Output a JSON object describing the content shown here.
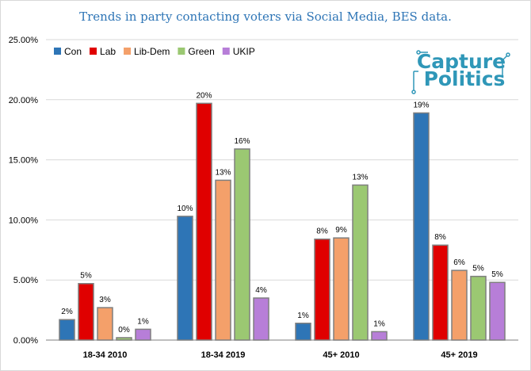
{
  "chart_data": {
    "type": "bar",
    "title": "Trends in party contacting voters via Social Media, BES data.",
    "categories": [
      "18-34 2010",
      "18-34 2019",
      "45+ 2010",
      "45+ 2019"
    ],
    "series": [
      {
        "name": "Con",
        "color": "#2e75b6",
        "values": [
          1.7,
          10.3,
          1.4,
          18.9
        ],
        "labels": [
          "2%",
          "10%",
          "1%",
          "19%"
        ]
      },
      {
        "name": "Lab",
        "color": "#e00000",
        "values": [
          4.7,
          19.7,
          8.4,
          7.9
        ],
        "labels": [
          "5%",
          "20%",
          "8%",
          "8%"
        ]
      },
      {
        "name": "Lib-Dem",
        "color": "#f4a06a",
        "values": [
          2.7,
          13.3,
          8.5,
          5.8
        ],
        "labels": [
          "3%",
          "13%",
          "9%",
          "6%"
        ]
      },
      {
        "name": "Green",
        "color": "#9bc872",
        "values": [
          0.2,
          15.9,
          12.9,
          5.3
        ],
        "labels": [
          "0%",
          "16%",
          "13%",
          "5%"
        ]
      },
      {
        "name": "UKIP",
        "color": "#b77ed8",
        "values": [
          0.9,
          3.5,
          0.7,
          4.8
        ],
        "labels": [
          "1%",
          "4%",
          "1%",
          "5%"
        ]
      }
    ],
    "ylim": [
      0,
      25
    ],
    "yticks": [
      "0.00%",
      "5.00%",
      "10.00%",
      "15.00%",
      "20.00%",
      "25.00%"
    ],
    "xlabel": "",
    "ylabel": "",
    "legend": "top-left",
    "grid": true
  },
  "logo": {
    "line1": "Capture",
    "line2": "Politics",
    "color": "#2f97b8"
  }
}
